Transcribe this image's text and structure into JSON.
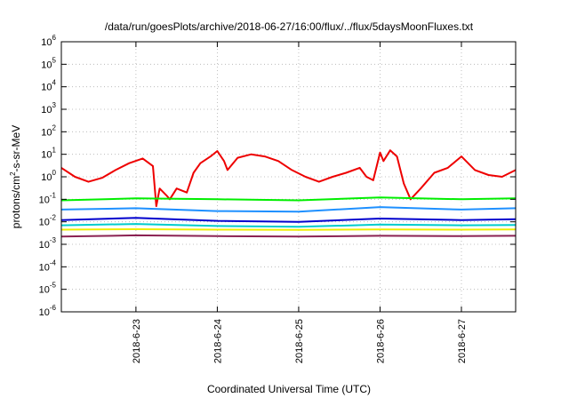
{
  "chart_data": {
    "type": "line",
    "title": "/data/run/goesPlots/archive/2018-06-27/16:00/flux/../flux/5daysMoonFluxes.txt",
    "xlabel": "Coordinated Universal Time (UTC)",
    "ylabel_parts": [
      "protons/cm",
      "2",
      "-s-sr-MeV"
    ],
    "yscale": "log",
    "ylim": [
      1e-06,
      1000000.0
    ],
    "yticks": [
      {
        "mant": "10",
        "exp": "-6",
        "value": 1e-06
      },
      {
        "mant": "10",
        "exp": "-5",
        "value": 1e-05
      },
      {
        "mant": "10",
        "exp": "-4",
        "value": 0.0001
      },
      {
        "mant": "10",
        "exp": "-3",
        "value": 0.001
      },
      {
        "mant": "10",
        "exp": "-2",
        "value": 0.01
      },
      {
        "mant": "10",
        "exp": "-1",
        "value": 0.1
      },
      {
        "mant": "10",
        "exp": "0",
        "value": 1
      },
      {
        "mant": "10",
        "exp": "1",
        "value": 10
      },
      {
        "mant": "10",
        "exp": "2",
        "value": 100
      },
      {
        "mant": "10",
        "exp": "3",
        "value": 1000
      },
      {
        "mant": "10",
        "exp": "4",
        "value": 10000
      },
      {
        "mant": "10",
        "exp": "5",
        "value": 100000
      },
      {
        "mant": "10",
        "exp": "6",
        "value": 1000000
      }
    ],
    "xlim": [
      "2018-06-22 02:00",
      "2018-06-27 16:00"
    ],
    "xticks": [
      "2018-6-23",
      "2018-6-24",
      "2018-6-25",
      "2018-6-26",
      "2018-6-27"
    ],
    "xtick_dates": [
      "2018-06-23 00:00",
      "2018-06-24 00:00",
      "2018-06-25 00:00",
      "2018-06-26 00:00",
      "2018-06-27 00:00"
    ],
    "grid": true,
    "series": [
      {
        "color": "#ee0000",
        "x": [
          "2018-06-22 02:00",
          "2018-06-22 06:00",
          "2018-06-22 10:00",
          "2018-06-22 14:00",
          "2018-06-22 18:00",
          "2018-06-22 22:00",
          "2018-06-23 02:00",
          "2018-06-23 05:00",
          "2018-06-23 06:00",
          "2018-06-23 07:00",
          "2018-06-23 09:00",
          "2018-06-23 10:00",
          "2018-06-23 12:00",
          "2018-06-23 15:00",
          "2018-06-23 17:00",
          "2018-06-23 19:00",
          "2018-06-23 22:00",
          "2018-06-24 00:00",
          "2018-06-24 02:00",
          "2018-06-24 03:00",
          "2018-06-24 06:00",
          "2018-06-24 10:00",
          "2018-06-24 14:00",
          "2018-06-24 18:00",
          "2018-06-24 22:00",
          "2018-06-25 02:00",
          "2018-06-25 06:00",
          "2018-06-25 10:00",
          "2018-06-25 14:00",
          "2018-06-25 18:00",
          "2018-06-25 20:00",
          "2018-06-25 22:00",
          "2018-06-26 00:00",
          "2018-06-26 01:00",
          "2018-06-26 03:00",
          "2018-06-26 05:00",
          "2018-06-26 07:00",
          "2018-06-26 09:00",
          "2018-06-26 12:00",
          "2018-06-26 16:00",
          "2018-06-26 20:00",
          "2018-06-27 00:00",
          "2018-06-27 04:00",
          "2018-06-27 08:00",
          "2018-06-27 12:00",
          "2018-06-27 16:00"
        ],
        "values": [
          2.5,
          1.0,
          0.6,
          0.9,
          2.0,
          4.0,
          6.5,
          3.0,
          0.05,
          0.3,
          0.15,
          0.1,
          0.3,
          0.2,
          1.5,
          4.0,
          8.0,
          14.0,
          5.0,
          2.0,
          7.0,
          10.0,
          8.0,
          5.0,
          2.0,
          1.0,
          0.6,
          1.0,
          1.5,
          2.5,
          1.0,
          0.7,
          12.0,
          5.0,
          15.0,
          8.0,
          0.5,
          0.1,
          0.3,
          1.5,
          2.5,
          8.0,
          2.0,
          1.2,
          1.0,
          2.0
        ]
      },
      {
        "color": "#00ee00",
        "x": [
          "2018-06-22 02:00",
          "2018-06-23 00:00",
          "2018-06-24 00:00",
          "2018-06-25 00:00",
          "2018-06-26 00:00",
          "2018-06-27 00:00",
          "2018-06-27 16:00"
        ],
        "values": [
          0.09,
          0.11,
          0.1,
          0.09,
          0.12,
          0.1,
          0.11
        ]
      },
      {
        "color": "#1e90ff",
        "x": [
          "2018-06-22 02:00",
          "2018-06-23 00:00",
          "2018-06-24 00:00",
          "2018-06-25 00:00",
          "2018-06-26 00:00",
          "2018-06-27 00:00",
          "2018-06-27 16:00"
        ],
        "values": [
          0.035,
          0.04,
          0.03,
          0.028,
          0.045,
          0.035,
          0.04
        ]
      },
      {
        "color": "#0000cd",
        "x": [
          "2018-06-22 02:00",
          "2018-06-23 00:00",
          "2018-06-24 00:00",
          "2018-06-25 00:00",
          "2018-06-26 00:00",
          "2018-06-27 00:00",
          "2018-06-27 16:00"
        ],
        "values": [
          0.012,
          0.015,
          0.011,
          0.01,
          0.014,
          0.012,
          0.013
        ]
      },
      {
        "color": "#00cccc",
        "x": [
          "2018-06-22 02:00",
          "2018-06-23 00:00",
          "2018-06-24 00:00",
          "2018-06-25 00:00",
          "2018-06-26 00:00",
          "2018-06-27 00:00",
          "2018-06-27 16:00"
        ],
        "values": [
          0.007,
          0.008,
          0.0065,
          0.006,
          0.0075,
          0.007,
          0.0072
        ]
      },
      {
        "color": "#eeee00",
        "x": [
          "2018-06-22 02:00",
          "2018-06-23 00:00",
          "2018-06-24 00:00",
          "2018-06-25 00:00",
          "2018-06-26 00:00",
          "2018-06-27 00:00",
          "2018-06-27 16:00"
        ],
        "values": [
          0.0045,
          0.0047,
          0.0045,
          0.0044,
          0.0046,
          0.0045,
          0.0046
        ]
      },
      {
        "color": "#8b2252",
        "x": [
          "2018-06-22 02:00",
          "2018-06-23 00:00",
          "2018-06-24 00:00",
          "2018-06-25 00:00",
          "2018-06-26 00:00",
          "2018-06-27 00:00",
          "2018-06-27 16:00"
        ],
        "values": [
          0.0022,
          0.0025,
          0.0023,
          0.0022,
          0.0024,
          0.0023,
          0.0024
        ]
      }
    ]
  }
}
